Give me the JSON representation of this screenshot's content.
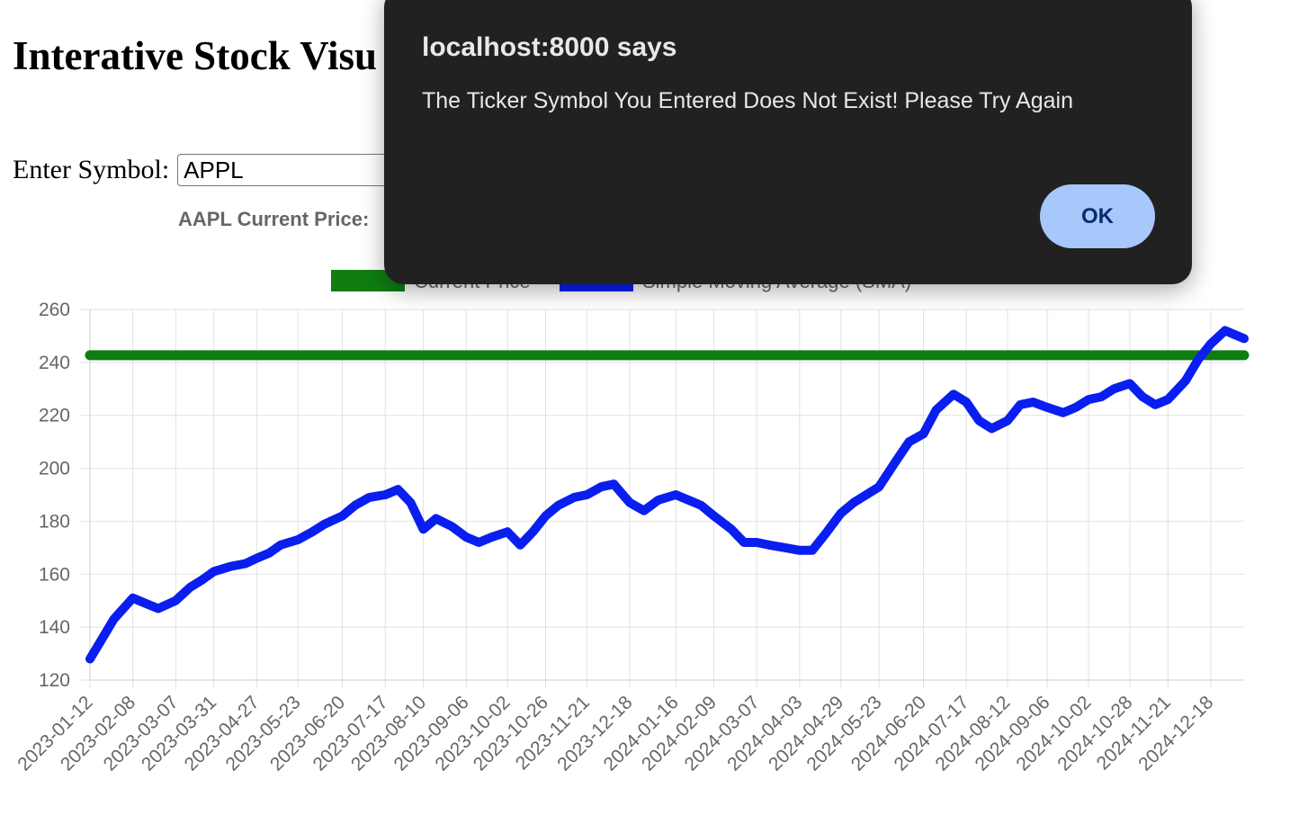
{
  "page": {
    "title": "Interative Stock Visu",
    "symbol_label": "Enter Symbol:",
    "symbol_value": "APPL",
    "current_price_label": "AAPL Current Price:"
  },
  "dialog": {
    "title": "localhost:8000 says",
    "message": "The Ticker Symbol You Entered Does Not Exist! Please Try Again",
    "ok_label": "OK"
  },
  "colors": {
    "current_price_line": "#0f7d12",
    "sma_line": "#0a1ef0",
    "dialog_bg": "#212121",
    "ok_button_bg": "#a8c7fa"
  },
  "chart_data": {
    "type": "line",
    "legend": [
      "Current Price",
      "Simple Moving Average (SMA)"
    ],
    "legend_position": "top-center",
    "grid": true,
    "ylim": [
      120,
      260
    ],
    "y_ticks": [
      120,
      140,
      160,
      180,
      200,
      220,
      240,
      260
    ],
    "x_tick_labels": [
      "2023-01-12",
      "2023-02-08",
      "2023-03-07",
      "2023-03-31",
      "2023-04-27",
      "2023-05-23",
      "2023-06-20",
      "2023-07-17",
      "2023-08-10",
      "2023-09-06",
      "2023-10-02",
      "2023-10-26",
      "2023-11-21",
      "2023-12-18",
      "2024-01-16",
      "2024-02-09",
      "2024-03-07",
      "2024-04-03",
      "2024-04-29",
      "2024-05-23",
      "2024-06-20",
      "2024-07-17",
      "2024-08-12",
      "2024-09-06",
      "2024-10-02",
      "2024-10-28",
      "2024-11-21",
      "2024-12-18"
    ],
    "series": [
      {
        "name": "Current Price",
        "x": [
          "2023-01-12",
          "2025-01-08"
        ],
        "values": [
          242.7,
          242.7
        ]
      },
      {
        "name": "Simple Moving Average (SMA)",
        "x": [
          "2023-01-12",
          "2023-01-19",
          "2023-01-27",
          "2023-02-08",
          "2023-02-16",
          "2023-02-24",
          "2023-03-07",
          "2023-03-16",
          "2023-03-24",
          "2023-03-31",
          "2023-04-11",
          "2023-04-20",
          "2023-04-27",
          "2023-05-05",
          "2023-05-12",
          "2023-05-23",
          "2023-06-01",
          "2023-06-09",
          "2023-06-20",
          "2023-06-28",
          "2023-07-07",
          "2023-07-17",
          "2023-07-25",
          "2023-08-02",
          "2023-08-10",
          "2023-08-18",
          "2023-08-28",
          "2023-09-06",
          "2023-09-14",
          "2023-09-22",
          "2023-10-02",
          "2023-10-10",
          "2023-10-18",
          "2023-10-26",
          "2023-11-03",
          "2023-11-13",
          "2023-11-21",
          "2023-11-30",
          "2023-12-08",
          "2023-12-18",
          "2023-12-27",
          "2024-01-05",
          "2024-01-16",
          "2024-01-24",
          "2024-02-01",
          "2024-02-09",
          "2024-02-20",
          "2024-02-28",
          "2024-03-07",
          "2024-03-15",
          "2024-03-25",
          "2024-04-03",
          "2024-04-11",
          "2024-04-19",
          "2024-04-29",
          "2024-05-07",
          "2024-05-15",
          "2024-05-23",
          "2024-06-03",
          "2024-06-11",
          "2024-06-20",
          "2024-06-28",
          "2024-07-09",
          "2024-07-17",
          "2024-07-25",
          "2024-08-02",
          "2024-08-12",
          "2024-08-20",
          "2024-08-28",
          "2024-09-06",
          "2024-09-16",
          "2024-09-24",
          "2024-10-02",
          "2024-10-10",
          "2024-10-18",
          "2024-10-28",
          "2024-11-05",
          "2024-11-13",
          "2024-11-21",
          "2024-12-02",
          "2024-12-10",
          "2024-12-18",
          "2024-12-27",
          "2025-01-08"
        ],
        "values": [
          128,
          135,
          143,
          151,
          149,
          147,
          150,
          155,
          158,
          161,
          163,
          164,
          166,
          168,
          171,
          173,
          176,
          179,
          182,
          186,
          189,
          190,
          192,
          187,
          177,
          181,
          178,
          174,
          172,
          174,
          176,
          171,
          176,
          182,
          186,
          189,
          190,
          193,
          194,
          187,
          184,
          188,
          190,
          188,
          186,
          182,
          177,
          172,
          172,
          171,
          170,
          169,
          169,
          175,
          183,
          187,
          190,
          193,
          203,
          210,
          213,
          222,
          228,
          225,
          218,
          215,
          218,
          224,
          225,
          223,
          221,
          223,
          226,
          227,
          230,
          232,
          227,
          224,
          226,
          233,
          241,
          247,
          252,
          249
        ]
      }
    ]
  }
}
